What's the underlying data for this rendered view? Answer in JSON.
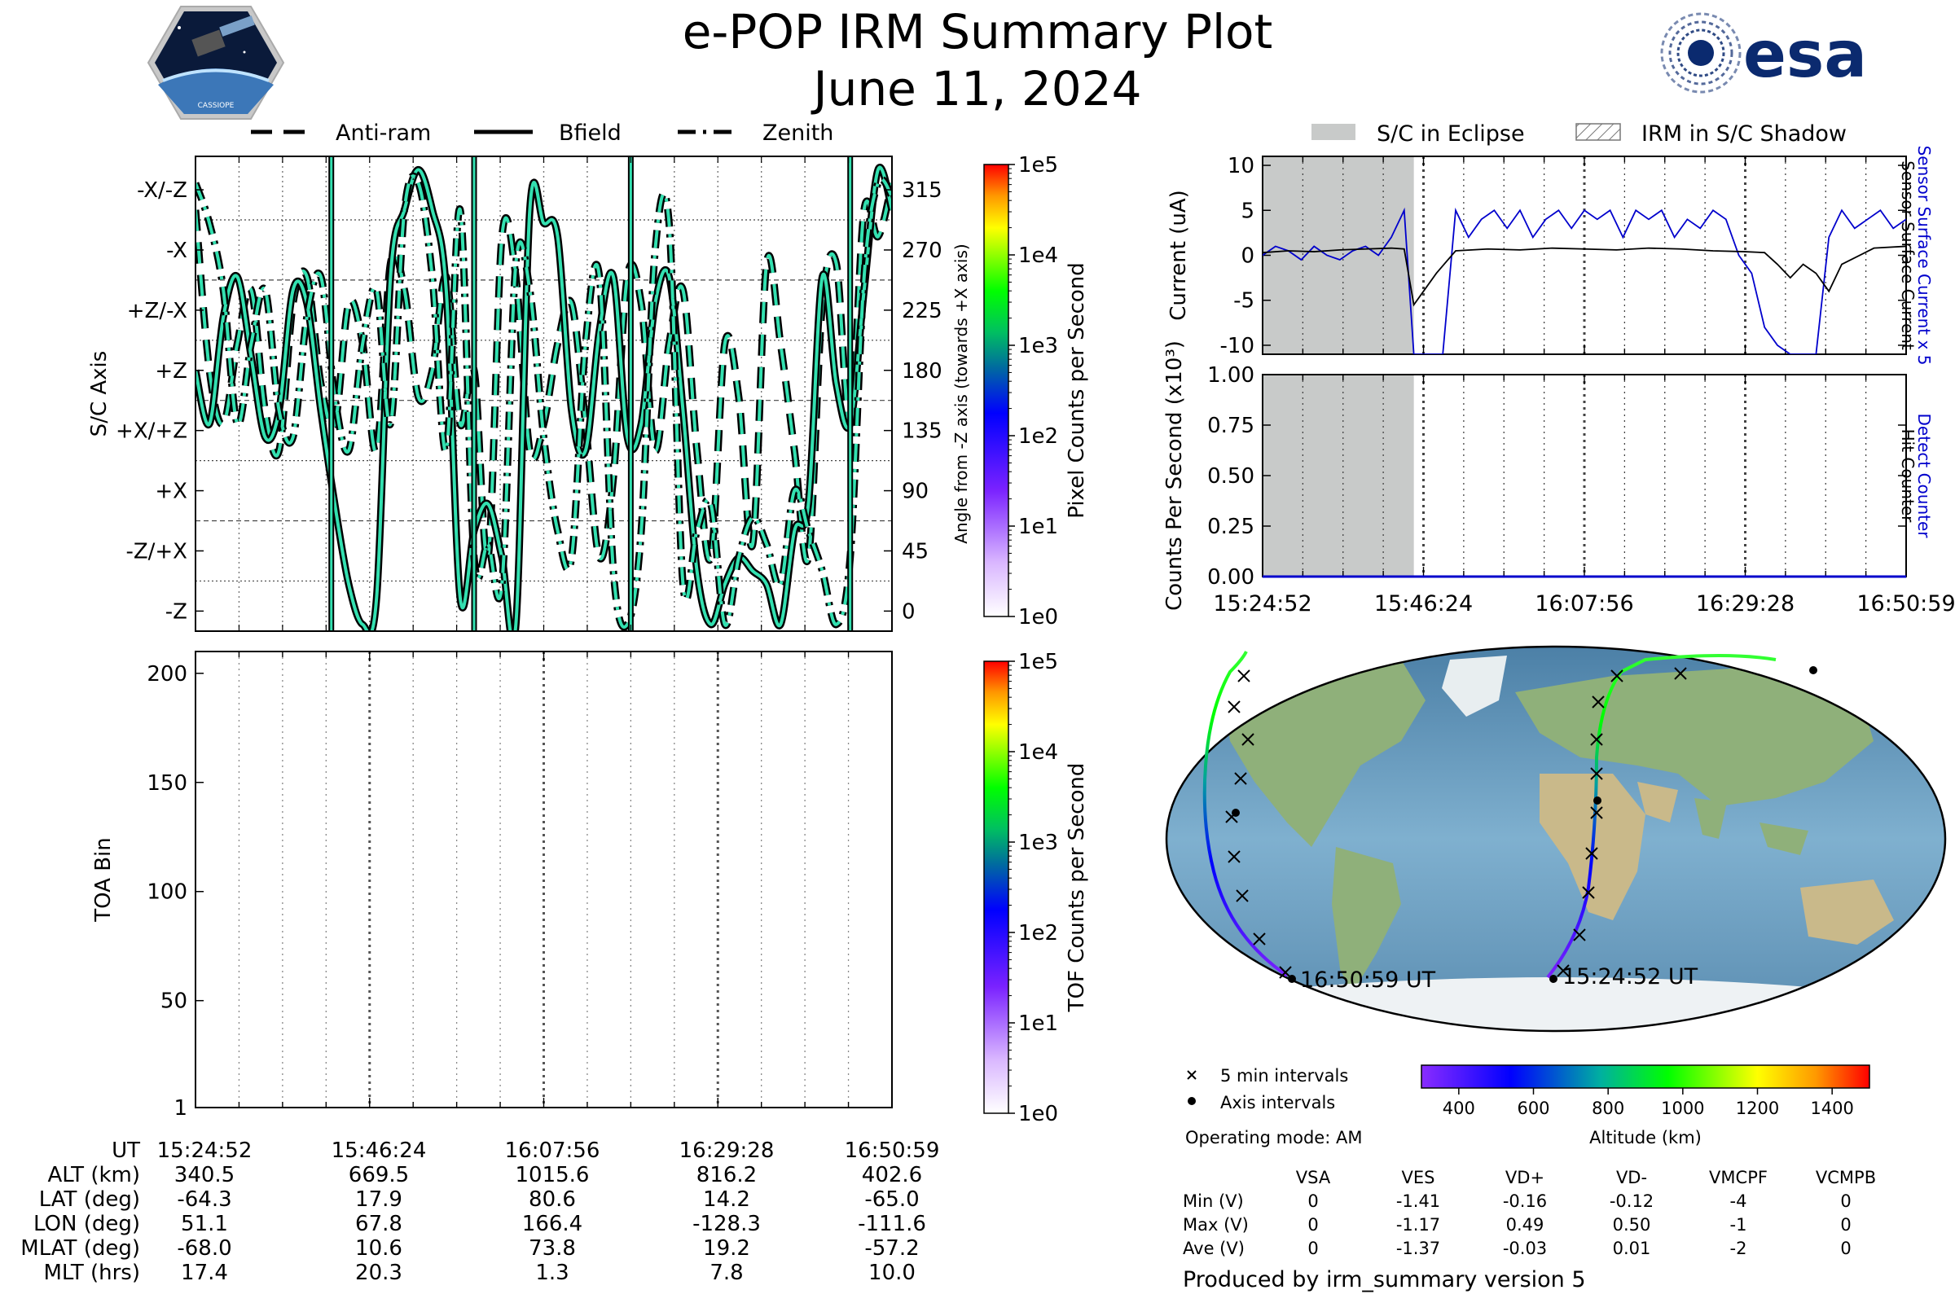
{
  "header": {
    "title": "e-POP IRM Summary Plot",
    "date": "June 11, 2024",
    "left_logo": "CASSIOPE",
    "right_logo": "esa",
    "colors": {
      "trace": "#33e0b0",
      "trace_edge": "#000000",
      "esa_blue": "#0b2a6f"
    }
  },
  "chart_data": [
    {
      "type": "line",
      "panel": "sc-axis-angles",
      "ylabel": "S/C Axis",
      "ylabel_right": "Angle from -Z axis (towards +X axis)",
      "ylim": [
        -15,
        340
      ],
      "left_ticks": [
        "-X/-Z",
        "-X",
        "+Z/-X",
        "+Z",
        "+X/+Z",
        "+X",
        "-Z/+X",
        "-Z"
      ],
      "left_tick_values": [
        315,
        270,
        225,
        180,
        135,
        90,
        45,
        0
      ],
      "right_ticks": [
        315,
        270,
        225,
        180,
        135,
        90,
        45,
        0
      ],
      "legend": [
        "Anti-ram",
        "Bfield",
        "Zenith"
      ],
      "legend_placement": "top",
      "series": [
        {
          "name": "Anti-ram",
          "style": "dashed",
          "x": [
            0,
            0.02,
            0.04,
            0.06,
            0.08,
            0.1,
            0.12,
            0.14,
            0.16,
            0.18,
            0.2,
            0.22,
            0.24,
            0.26,
            0.28,
            0.3,
            0.32,
            0.34,
            0.36,
            0.38,
            0.4,
            0.42,
            0.44,
            0.46,
            0.48,
            0.5,
            0.52,
            0.54,
            0.56,
            0.58,
            0.6,
            0.62,
            0.64,
            0.66,
            0.68,
            0.7,
            0.72,
            0.74,
            0.76,
            0.78,
            0.8,
            0.82,
            0.84,
            0.86,
            0.88,
            0.9,
            0.92,
            0.94,
            0.96,
            0.98,
            1.0
          ],
          "y": [
            300,
            180,
            140,
            200,
            240,
            150,
            120,
            230,
            250,
            170,
            140,
            230,
            200,
            120,
            260,
            240,
            160,
            180,
            250,
            140,
            180,
            40,
            280,
            250,
            120,
            140,
            200,
            230,
            140,
            40,
            100,
            250,
            230,
            120,
            200,
            240,
            120,
            40,
            200,
            160,
            50,
            260,
            200,
            120,
            40,
            230,
            260,
            140,
            300,
            280,
            320
          ]
        },
        {
          "name": "Bfield",
          "style": "solid",
          "x": [
            0,
            0.02,
            0.04,
            0.06,
            0.08,
            0.1,
            0.12,
            0.14,
            0.16,
            0.18,
            0.2,
            0.22,
            0.24,
            0.26,
            0.28,
            0.3,
            0.32,
            0.34,
            0.36,
            0.38,
            0.4,
            0.42,
            0.44,
            0.46,
            0.48,
            0.5,
            0.52,
            0.54,
            0.56,
            0.58,
            0.6,
            0.62,
            0.64,
            0.66,
            0.68,
            0.7,
            0.72,
            0.74,
            0.76,
            0.78,
            0.8,
            0.82,
            0.84,
            0.86,
            0.88,
            0.9,
            0.92,
            0.94,
            0.96,
            0.98,
            1.0
          ],
          "y": [
            180,
            140,
            220,
            250,
            190,
            130,
            150,
            240,
            230,
            150,
            80,
            20,
            -10,
            10,
            250,
            300,
            330,
            300,
            240,
            10,
            60,
            80,
            40,
            -10,
            300,
            290,
            280,
            150,
            120,
            210,
            250,
            130,
            140,
            230,
            250,
            150,
            30,
            -10,
            20,
            40,
            30,
            20,
            -10,
            60,
            80,
            250,
            170,
            140,
            240,
            330,
            300
          ]
        },
        {
          "name": "Zenith",
          "style": "dashdot",
          "x": [
            0,
            0.02,
            0.04,
            0.06,
            0.08,
            0.1,
            0.12,
            0.14,
            0.16,
            0.18,
            0.2,
            0.22,
            0.24,
            0.26,
            0.28,
            0.3,
            0.32,
            0.34,
            0.36,
            0.38,
            0.4,
            0.42,
            0.44,
            0.46,
            0.48,
            0.5,
            0.52,
            0.54,
            0.56,
            0.58,
            0.6,
            0.62,
            0.64,
            0.66,
            0.68,
            0.7,
            0.72,
            0.74,
            0.76,
            0.78,
            0.8,
            0.82,
            0.84,
            0.86,
            0.88,
            0.9,
            0.92,
            0.94,
            0.96,
            0.98,
            1.0
          ],
          "y": [
            320,
            290,
            240,
            140,
            200,
            240,
            150,
            130,
            220,
            250,
            160,
            120,
            200,
            240,
            140,
            300,
            320,
            250,
            120,
            300,
            40,
            50,
            20,
            260,
            240,
            130,
            60,
            40,
            200,
            250,
            30,
            -10,
            60,
            270,
            290,
            20,
            60,
            80,
            -10,
            40,
            70,
            50,
            20,
            90,
            60,
            30,
            -10,
            40,
            250,
            320,
            310
          ]
        }
      ]
    },
    {
      "type": "heatmap",
      "panel": "toa-bin",
      "ylabel": "TOA Bin",
      "ylim": [
        1,
        210
      ],
      "y_ticks": [
        200,
        150,
        100,
        50,
        1
      ],
      "x_ticks": [
        "15:24:52",
        "15:46:24",
        "16:07:56",
        "16:29:28",
        "16:50:59"
      ],
      "colorbar_label": "TOF Counts per Second",
      "colorbar_ticks": [
        "1e5",
        "1e4",
        "1e3",
        "1e2",
        "1e1",
        "1e0"
      ]
    },
    {
      "type": "heatmap",
      "panel": "pixel-counts-colorbar",
      "colorbar_label": "Pixel Counts per Second",
      "colorbar_ticks": [
        "1e5",
        "1e4",
        "1e3",
        "1e2",
        "1e1",
        "1e0"
      ]
    },
    {
      "type": "line",
      "panel": "current",
      "ylabel": "Current (uA)",
      "ylim": [
        -11,
        11
      ],
      "y_ticks": [
        10,
        5,
        0,
        -5,
        -10
      ],
      "legend": [
        "S/C in Eclipse",
        "IRM in S/C Shadow"
      ],
      "legend_placement": "top",
      "eclipse_range": [
        0,
        0.235
      ],
      "right_labels": [
        "Sensor Surface Current x 5",
        "Sensor Surface Current"
      ],
      "series": [
        {
          "name": "Sensor Surface Current x 5",
          "color": "#0000cc",
          "x": [
            0,
            0.02,
            0.04,
            0.06,
            0.08,
            0.1,
            0.12,
            0.14,
            0.16,
            0.18,
            0.2,
            0.22,
            0.235,
            0.24,
            0.26,
            0.28,
            0.3,
            0.32,
            0.34,
            0.36,
            0.38,
            0.4,
            0.42,
            0.44,
            0.46,
            0.48,
            0.5,
            0.52,
            0.54,
            0.56,
            0.58,
            0.6,
            0.62,
            0.64,
            0.66,
            0.68,
            0.7,
            0.72,
            0.74,
            0.76,
            0.78,
            0.8,
            0.82,
            0.84,
            0.86,
            0.88,
            0.9,
            0.92,
            0.94,
            0.96,
            0.98,
            1.0
          ],
          "y": [
            0,
            1,
            0.5,
            -0.5,
            1,
            0,
            -0.5,
            0.5,
            1,
            0,
            2,
            5,
            -11,
            -11,
            -11,
            -11,
            5,
            2,
            4,
            5,
            3,
            5,
            2,
            4,
            5,
            3,
            5,
            4,
            5,
            2,
            5,
            4,
            5,
            2,
            4,
            3,
            5,
            4,
            0,
            -2,
            -8,
            -10,
            -11,
            -11,
            -11,
            2,
            5,
            3,
            4,
            5,
            3,
            4
          ]
        },
        {
          "name": "Sensor Surface Current",
          "color": "#000000",
          "x": [
            0,
            0.04,
            0.08,
            0.12,
            0.16,
            0.2,
            0.22,
            0.235,
            0.25,
            0.27,
            0.3,
            0.35,
            0.4,
            0.45,
            0.5,
            0.55,
            0.6,
            0.65,
            0.7,
            0.75,
            0.78,
            0.8,
            0.82,
            0.84,
            0.86,
            0.88,
            0.9,
            0.95,
            1.0
          ],
          "y": [
            0.3,
            0.5,
            0.4,
            0.6,
            0.7,
            0.8,
            0.7,
            -5.5,
            -4,
            -2,
            0.5,
            0.7,
            0.6,
            0.8,
            0.7,
            0.6,
            0.8,
            0.7,
            0.5,
            0.4,
            0.3,
            -1,
            -2.5,
            -1,
            -2,
            -4,
            -1,
            0.8,
            1
          ]
        }
      ]
    },
    {
      "type": "line",
      "panel": "counts",
      "ylabel": "Counts Per Second (x10³)",
      "ylim": [
        0,
        1
      ],
      "y_ticks": [
        "1.00",
        "0.75",
        "0.50",
        "0.25",
        "0.00"
      ],
      "x_ticks": [
        "15:24:52",
        "15:46:24",
        "16:07:56",
        "16:29:28",
        "16:50:59"
      ],
      "eclipse_range": [
        0,
        0.235
      ],
      "right_labels": [
        "Detect Counter",
        "Hit Counter"
      ],
      "series": [
        {
          "name": "Detect Counter",
          "color": "#0000cc",
          "x": [
            0,
            1
          ],
          "y": [
            0,
            0
          ]
        }
      ]
    }
  ],
  "time_table": {
    "row_labels": [
      "UT",
      "ALT (km)",
      "LAT (deg)",
      "LON (deg)",
      "MLAT (deg)",
      "MLT (hrs)"
    ],
    "columns": [
      [
        "15:24:52",
        "340.5",
        "-64.3",
        "51.1",
        "-68.0",
        "17.4"
      ],
      [
        "15:46:24",
        "669.5",
        "17.9",
        "67.8",
        "10.6",
        "20.3"
      ],
      [
        "16:07:56",
        "1015.6",
        "80.6",
        "166.4",
        "73.8",
        "1.3"
      ],
      [
        "16:29:28",
        "816.2",
        "14.2",
        "-128.3",
        "19.2",
        "7.8"
      ],
      [
        "16:50:59",
        "402.6",
        "-65.0",
        "-111.6",
        "-57.2",
        "10.0"
      ]
    ]
  },
  "map": {
    "start_label": "15:24:52 UT",
    "end_label": "16:50:59 UT",
    "legend_5min": "5 min intervals",
    "legend_axis": "Axis intervals",
    "altitude_ticks": [
      "400",
      "600",
      "800",
      "1000",
      "1200",
      "1400"
    ],
    "altitude_label": "Altitude (km)",
    "operating_mode": "Operating mode: AM"
  },
  "voltage_table": {
    "headers": [
      "VSA",
      "VES",
      "VD+",
      "VD-",
      "VMCPF",
      "VCMPB"
    ],
    "rows": [
      {
        "label": "Min (V)",
        "values": [
          "0",
          "-1.41",
          "-0.16",
          "-0.12",
          "-4",
          "0"
        ]
      },
      {
        "label": "Max (V)",
        "values": [
          "0",
          "-1.17",
          "0.49",
          "0.50",
          "-1",
          "0"
        ]
      },
      {
        "label": "Ave (V)",
        "values": [
          "0",
          "-1.37",
          "-0.03",
          "0.01",
          "-2",
          "0"
        ]
      }
    ]
  },
  "footer": {
    "produced_by": "Produced by irm_summary version 5"
  }
}
